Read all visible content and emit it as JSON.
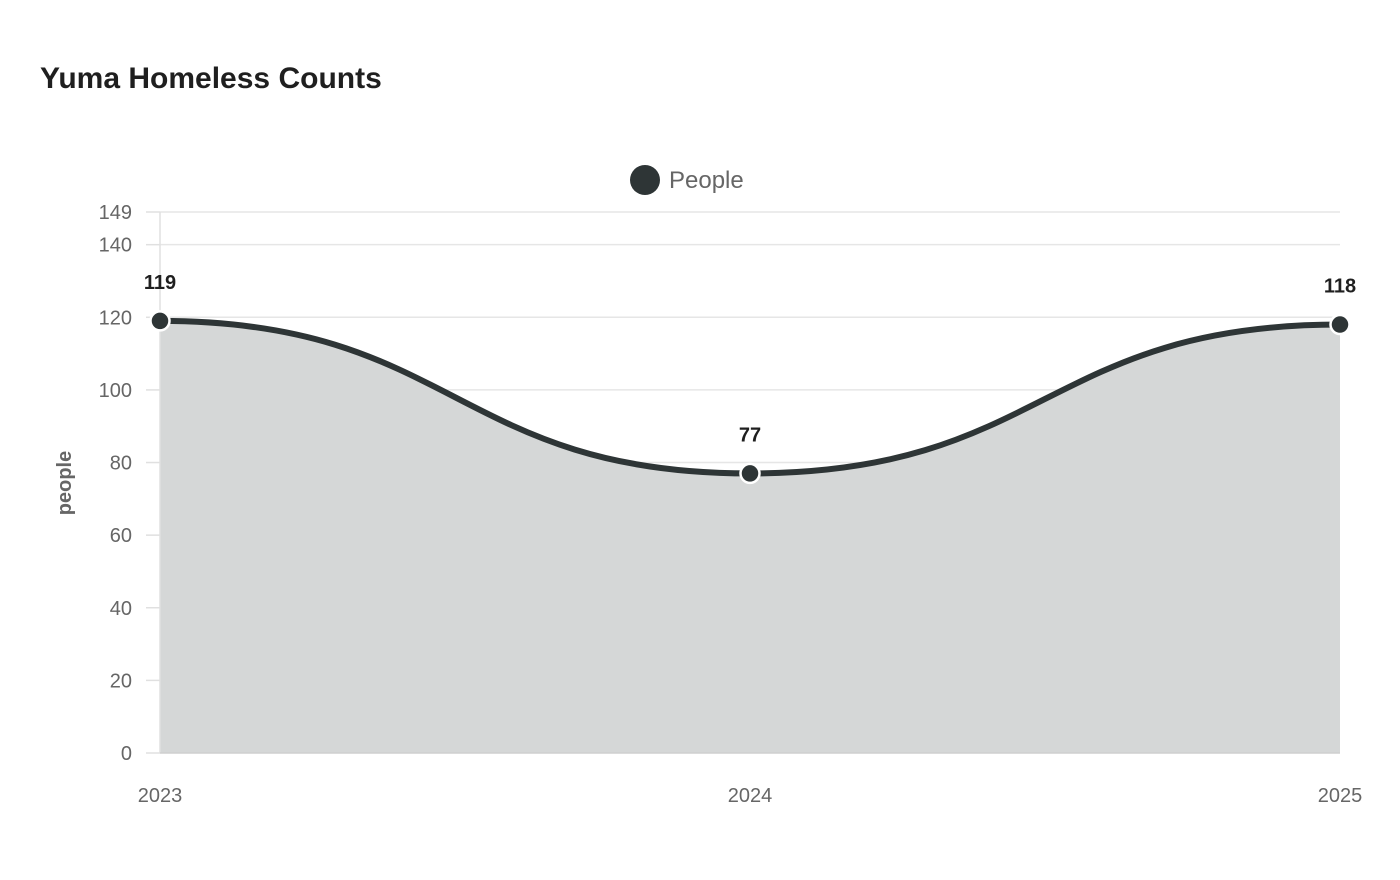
{
  "chart_data": {
    "type": "area",
    "title": "Yuma Homeless Counts",
    "xlabel": "",
    "ylabel": "people",
    "categories": [
      "2023",
      "2024",
      "2025"
    ],
    "series": [
      {
        "name": "People",
        "values": [
          119,
          77,
          118
        ],
        "color": "#2e3536",
        "fill_color": "#d5d7d7"
      }
    ],
    "ylim": [
      0,
      149
    ],
    "yticks": [
      0,
      20,
      40,
      60,
      80,
      100,
      120,
      140,
      149
    ],
    "grid": true,
    "legend_position": "top-center",
    "data_labels": [
      "119",
      "77",
      "118"
    ]
  }
}
